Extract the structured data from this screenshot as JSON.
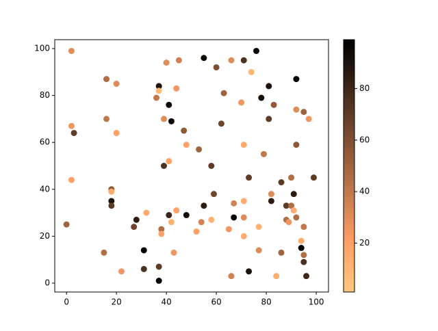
{
  "chart_data": {
    "type": "scatter",
    "colormap": "copper_r",
    "x": [
      2,
      55,
      76,
      40,
      45,
      60,
      66,
      71,
      74,
      92,
      16,
      20,
      37,
      37,
      44,
      81,
      36,
      63,
      78,
      41,
      70,
      83,
      92,
      95,
      16,
      39,
      42,
      62,
      81,
      97,
      2,
      3,
      20,
      47,
      48,
      71,
      92,
      53,
      79,
      41,
      39,
      58,
      2,
      73,
      90,
      99,
      86,
      18,
      18,
      59,
      82,
      91,
      18,
      18,
      55,
      71,
      82,
      88,
      90,
      91,
      67,
      32,
      41,
      44,
      48,
      28,
      58,
      67,
      71,
      88,
      89,
      92,
      0,
      27,
      38,
      42,
      54,
      65,
      77,
      95,
      38,
      52,
      71,
      94,
      31,
      15,
      43,
      77,
      86,
      94,
      95,
      95,
      22,
      31,
      37,
      73,
      84,
      37,
      66,
      96
    ],
    "values": [
      99,
      96,
      99,
      94,
      95,
      92,
      95,
      95,
      90,
      87,
      87,
      85,
      84,
      82,
      83,
      84,
      79,
      81,
      79,
      76,
      77,
      76,
      74,
      73,
      70,
      70,
      69,
      68,
      70,
      70,
      67,
      64,
      64,
      65,
      59,
      59,
      59,
      57,
      55,
      52,
      50,
      50,
      44,
      45,
      45,
      45,
      43,
      40,
      39,
      38,
      38,
      38,
      35,
      33,
      33,
      35,
      35,
      33,
      33,
      31,
      34,
      30,
      29,
      31,
      29,
      27,
      27,
      28,
      28,
      27,
      26,
      28,
      25,
      24,
      23,
      26,
      26,
      23,
      24,
      24,
      21,
      22,
      20,
      18,
      14,
      13,
      13,
      14,
      13,
      15,
      12,
      9,
      5,
      6,
      7,
      5,
      3,
      1,
      3,
      3
    ],
    "color_values": [
      30,
      95,
      97,
      30,
      35,
      60,
      30,
      75,
      10,
      99,
      45,
      30,
      90,
      10,
      25,
      90,
      40,
      50,
      92,
      95,
      25,
      55,
      30,
      50,
      40,
      30,
      95,
      65,
      70,
      25,
      25,
      70,
      20,
      55,
      20,
      15,
      55,
      50,
      40,
      20,
      75,
      70,
      20,
      70,
      45,
      70,
      70,
      55,
      15,
      65,
      30,
      85,
      90,
      70,
      85,
      15,
      85,
      70,
      45,
      15,
      35,
      15,
      80,
      20,
      92,
      85,
      12,
      95,
      30,
      45,
      25,
      45,
      50,
      65,
      45,
      12,
      35,
      25,
      12,
      40,
      20,
      20,
      15,
      15,
      98,
      45,
      25,
      30,
      50,
      98,
      45,
      75,
      25,
      75,
      70,
      90,
      15,
      98,
      35,
      80
    ],
    "xlim": [
      -4.7,
      104.9
    ],
    "ylim": [
      -3.8,
      103.8
    ],
    "clim": [
      1,
      99
    ],
    "xticks": [
      0,
      20,
      40,
      60,
      80,
      100
    ],
    "yticks": [
      0,
      20,
      40,
      60,
      80,
      100
    ],
    "cticks": [
      20,
      40,
      60,
      80
    ]
  }
}
